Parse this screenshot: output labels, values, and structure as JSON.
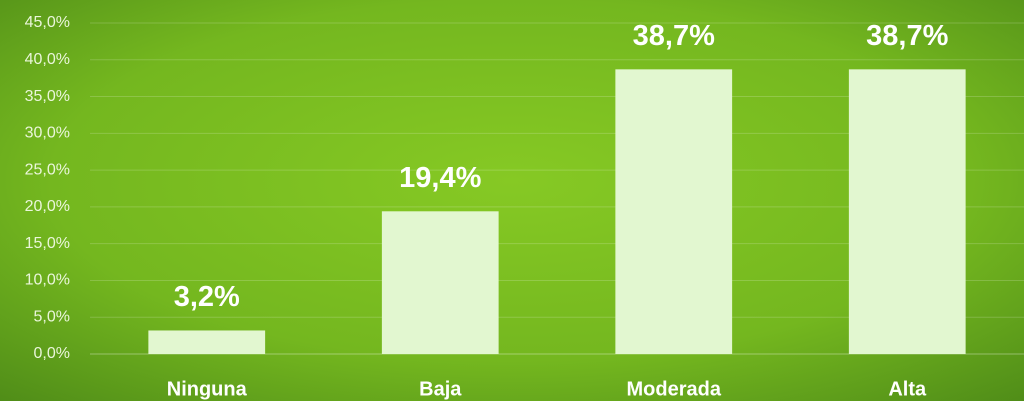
{
  "chart_data": {
    "type": "bar",
    "categories": [
      "Ninguna",
      "Baja",
      "Moderada",
      "Alta"
    ],
    "values": [
      3.2,
      19.4,
      38.7,
      38.7
    ],
    "value_labels": [
      "3,2%",
      "19,4%",
      "38,7%",
      "38,7%"
    ],
    "color": "#e2f7d0",
    "ylim": [
      0,
      45
    ],
    "yticks": [
      {
        "value": 0,
        "label": "0,0%"
      },
      {
        "value": 5,
        "label": "5,0%"
      },
      {
        "value": 10,
        "label": "10,0%"
      },
      {
        "value": 15,
        "label": "15,0%"
      },
      {
        "value": 20,
        "label": "20,0%"
      },
      {
        "value": 25,
        "label": "25,0%"
      },
      {
        "value": 30,
        "label": "30,0%"
      },
      {
        "value": 35,
        "label": "35,0%"
      },
      {
        "value": 40,
        "label": "40,0%"
      },
      {
        "value": 45,
        "label": "45,0%"
      }
    ],
    "grid": true
  }
}
